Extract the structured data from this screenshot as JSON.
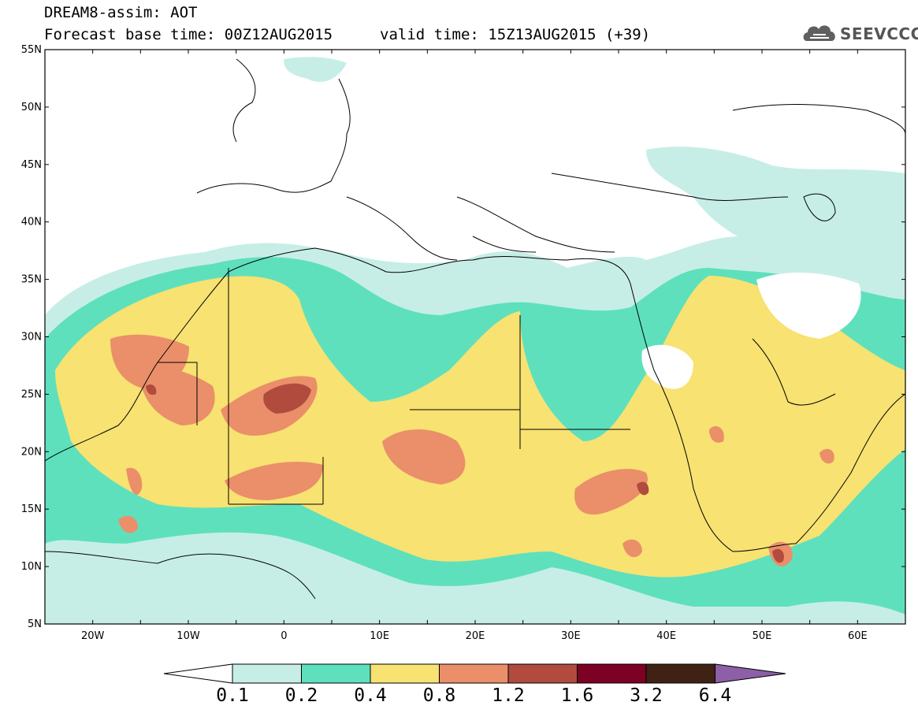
{
  "header": {
    "title": "DREAM8-assim: AOT",
    "base_time_label": "Forecast base time: 00Z12AUG2015",
    "valid_time_label": "valid time: 15Z13AUG2015 (+39)",
    "logo_text": "SEEVCCC",
    "logo_icon": "cloud-icon"
  },
  "map": {
    "variable": "AOT",
    "lon_range": [
      -25,
      65
    ],
    "lat_range": [
      5,
      55
    ],
    "lon_ticks": [
      "20W",
      "10W",
      "0",
      "10E",
      "20E",
      "30E",
      "40E",
      "50E",
      "60E"
    ],
    "lat_ticks": [
      "55N",
      "50N",
      "45N",
      "40N",
      "35N",
      "30N",
      "25N",
      "20N",
      "15N",
      "10N",
      "5N"
    ],
    "coastline_color": "#000000",
    "land_background": "#ffffff"
  },
  "colorbar": {
    "levels": [
      "0.1",
      "0.2",
      "0.4",
      "0.8",
      "1.2",
      "1.6",
      "3.2",
      "6.4"
    ],
    "colors": [
      "#ffffff",
      "#c6eee6",
      "#5ee0bd",
      "#f7e272",
      "#ea8f6a",
      "#b14b3d",
      "#7d0025",
      "#3f2214",
      "#8c5fa6"
    ]
  }
}
